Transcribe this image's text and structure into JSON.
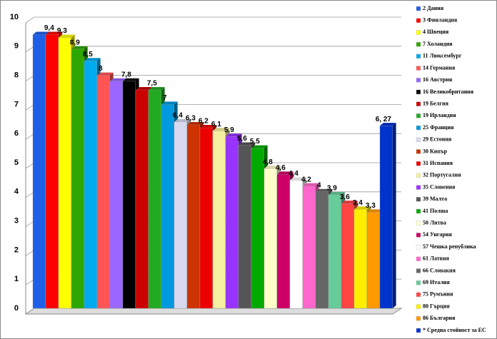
{
  "chart_data": {
    "type": "bar3d",
    "categories": [
      "2 Дания",
      "3 Финландия",
      "4 Швеция",
      "7 Холандия",
      "11 Люксембург",
      "14 Германия",
      "16 Австрия",
      "16 Великобритания",
      "19 Белгия",
      "19 Ирландия",
      "25 Франция",
      "29 Естония",
      "30 Кипър",
      "31 Испания",
      "32 Португалия",
      "35 Словения",
      "39 Малта",
      "41 Полша",
      "50 Литва",
      "54 Унгария",
      "57 Чешка република",
      "61 Латвия",
      "66 Словакия",
      "69 Италия",
      "75 Румъния",
      "80 Гърция",
      "86 България",
      "* Средна стойност за ЕС"
    ],
    "values": [
      9.4,
      9.4,
      9.3,
      8.9,
      8.5,
      8,
      7.8,
      7.8,
      7.5,
      7.5,
      7,
      6.4,
      6.3,
      6.2,
      6.1,
      5.9,
      5.6,
      5.5,
      4.8,
      4.6,
      4.4,
      4.2,
      4,
      3.9,
      3.6,
      3.4,
      3.3,
      6.27
    ],
    "value_labels": [
      null,
      "9,4",
      "9,3",
      "8,9",
      "8,5",
      "8",
      null,
      "7,8",
      null,
      "7,5",
      "7",
      "6,4",
      "6,3",
      "6,2",
      "6,1",
      "5,9",
      "5,6",
      "5,5",
      "4,8",
      "4,6",
      "4,4",
      "4,2",
      "4",
      "3,9",
      "3,6",
      "3,4",
      "3,3",
      "6, 27"
    ],
    "colors": [
      "#1f5fe8",
      "#ff0000",
      "#ffff00",
      "#2ea800",
      "#00aaee",
      "#ff5555",
      "#9966ff",
      "#000000",
      "#cc0000",
      "#22aa22",
      "#0099dd",
      "#d8d8f0",
      "#cc3300",
      "#ee0000",
      "#f5f0a0",
      "#9933ff",
      "#555555",
      "#00aa00",
      "#ffffcc",
      "#cc0066",
      "#ffffff",
      "#ff66cc",
      "#666666",
      "#66cc99",
      "#ff4444",
      "#ffee00",
      "#ff9900",
      "#0033cc"
    ],
    "ylim": [
      0,
      10
    ],
    "yticks": [
      0,
      1,
      2,
      3,
      4,
      5,
      6,
      7,
      8,
      9,
      10
    ],
    "grid": true,
    "legend": "right"
  }
}
